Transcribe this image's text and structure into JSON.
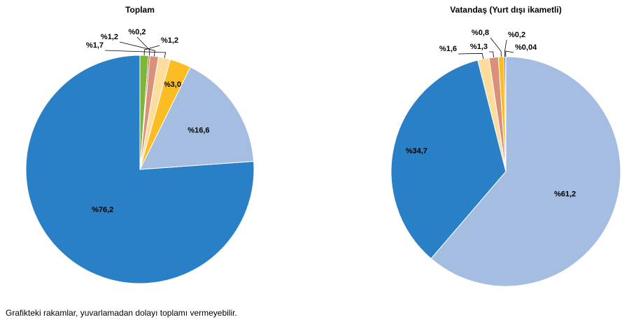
{
  "chart_data": [
    {
      "type": "pie",
      "title": "Toplam",
      "slices": [
        {
          "label": "%76,2",
          "value": 76.2,
          "color": "#2a80c6"
        },
        {
          "label": "%16,6",
          "value": 16.6,
          "color": "#a4bde0"
        },
        {
          "label": "%3,0",
          "value": 3.0,
          "color": "#fbbc24"
        },
        {
          "label": "%1,7",
          "value": 1.7,
          "color": "#fddc9e"
        },
        {
          "label": "%1,2",
          "value": 1.2,
          "color": "#d9917a"
        },
        {
          "label": "%0,2",
          "value": 0.2,
          "color": "#b5311e"
        },
        {
          "label": "%1,2",
          "value": 1.2,
          "color": "#7db73a"
        }
      ]
    },
    {
      "type": "pie",
      "title": "Vatandaş (Yurt dışı ikametli)",
      "slices": [
        {
          "label": "%61,2",
          "value": 61.2,
          "color": "#a4bde0"
        },
        {
          "label": "%34,7",
          "value": 34.7,
          "color": "#2a80c6"
        },
        {
          "label": "%1,6",
          "value": 1.6,
          "color": "#fddc9e"
        },
        {
          "label": "%1,3",
          "value": 1.3,
          "color": "#d9917a"
        },
        {
          "label": "%0,8",
          "value": 0.8,
          "color": "#fbbc24"
        },
        {
          "label": "%0,2",
          "value": 0.2,
          "color": "#b5311e"
        },
        {
          "label": "%0,04",
          "value": 0.04,
          "color": "#7db73a"
        }
      ]
    }
  ],
  "footnote": "Grafikteki rakamlar, yuvarlamadan dolayı toplamı vermeyebilir."
}
